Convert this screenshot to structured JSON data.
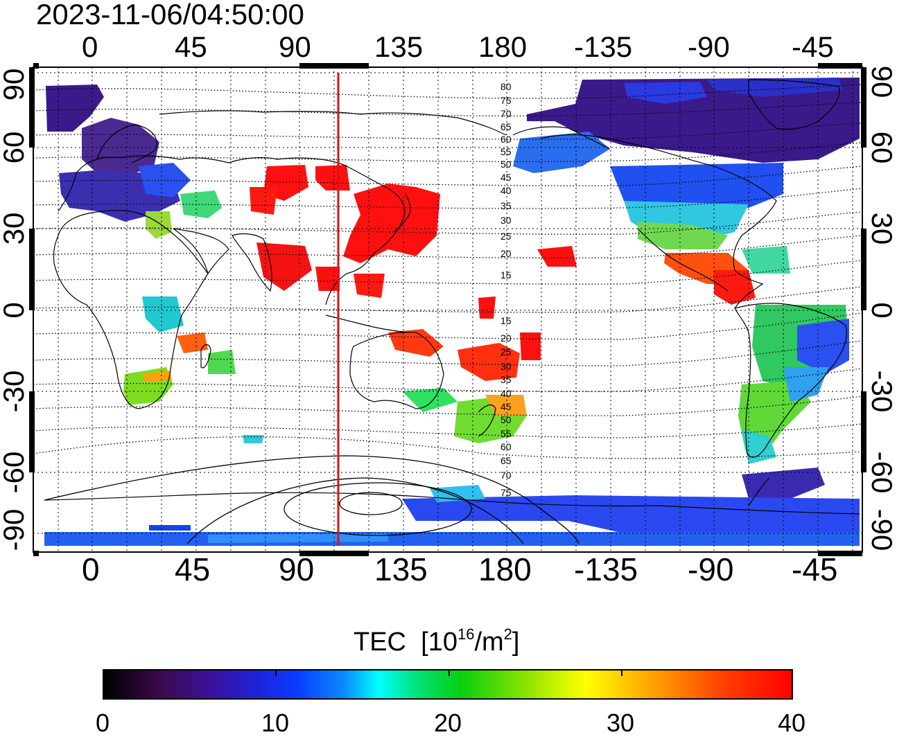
{
  "timestamp": "2023-11-06/04:50:00",
  "lon_tick_labels": [
    "0",
    "45",
    "90",
    "135",
    "180",
    "-135",
    "-90",
    "-45"
  ],
  "lat_tick_labels": [
    "90",
    "60",
    "30",
    "0",
    "-30",
    "-60",
    "-90"
  ],
  "contour_labels": [
    "80",
    "75",
    "70",
    "65",
    "60",
    "55",
    "50",
    "45",
    "40",
    "35",
    "30",
    "25",
    "20",
    "15",
    "15",
    "20",
    "25",
    "30",
    "35",
    "40",
    "45",
    "50",
    "55",
    "60",
    "65",
    "70",
    "75"
  ],
  "colorbar": {
    "title": "TEC",
    "unit_base": "[10",
    "unit_exp": "16",
    "unit_mid": "/m",
    "unit_exp2": "2",
    "unit_end": "]",
    "min": 0,
    "max": 40,
    "tick_labels": [
      "0",
      "10",
      "20",
      "30",
      "40"
    ]
  },
  "colors": {
    "terminator_line": "#e01010",
    "coastline": "#000000",
    "high_tec": "#ff1010",
    "mid_tec": "#30e030",
    "low_tec": "#2040ff",
    "very_low_tec": "#3a1070"
  },
  "terminator_longitude": 107
}
